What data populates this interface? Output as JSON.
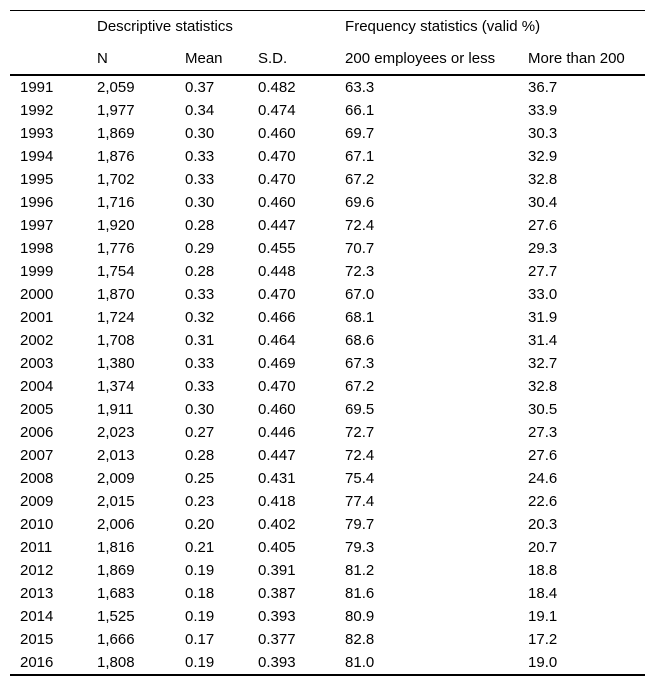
{
  "table": {
    "group_headers": [
      {
        "label": "Descriptive statistics",
        "span": 3
      },
      {
        "label": "Frequency statistics (valid %)",
        "span": 2
      }
    ],
    "column_headers": [
      "N",
      "Mean",
      "S.D.",
      "200 employees or less",
      "More than 200"
    ],
    "rows": [
      [
        "1991",
        "2,059",
        "0.37",
        "0.482",
        "63.3",
        "36.7"
      ],
      [
        "1992",
        "1,977",
        "0.34",
        "0.474",
        "66.1",
        "33.9"
      ],
      [
        "1993",
        "1,869",
        "0.30",
        "0.460",
        "69.7",
        "30.3"
      ],
      [
        "1994",
        "1,876",
        "0.33",
        "0.470",
        "67.1",
        "32.9"
      ],
      [
        "1995",
        "1,702",
        "0.33",
        "0.470",
        "67.2",
        "32.8"
      ],
      [
        "1996",
        "1,716",
        "0.30",
        "0.460",
        "69.6",
        "30.4"
      ],
      [
        "1997",
        "1,920",
        "0.28",
        "0.447",
        "72.4",
        "27.6"
      ],
      [
        "1998",
        "1,776",
        "0.29",
        "0.455",
        "70.7",
        "29.3"
      ],
      [
        "1999",
        "1,754",
        "0.28",
        "0.448",
        "72.3",
        "27.7"
      ],
      [
        "2000",
        "1,870",
        "0.33",
        "0.470",
        "67.0",
        "33.0"
      ],
      [
        "2001",
        "1,724",
        "0.32",
        "0.466",
        "68.1",
        "31.9"
      ],
      [
        "2002",
        "1,708",
        "0.31",
        "0.464",
        "68.6",
        "31.4"
      ],
      [
        "2003",
        "1,380",
        "0.33",
        "0.469",
        "67.3",
        "32.7"
      ],
      [
        "2004",
        "1,374",
        "0.33",
        "0.470",
        "67.2",
        "32.8"
      ],
      [
        "2005",
        "1,911",
        "0.30",
        "0.460",
        "69.5",
        "30.5"
      ],
      [
        "2006",
        "2,023",
        "0.27",
        "0.446",
        "72.7",
        "27.3"
      ],
      [
        "2007",
        "2,013",
        "0.28",
        "0.447",
        "72.4",
        "27.6"
      ],
      [
        "2008",
        "2,009",
        "0.25",
        "0.431",
        "75.4",
        "24.6"
      ],
      [
        "2009",
        "2,015",
        "0.23",
        "0.418",
        "77.4",
        "22.6"
      ],
      [
        "2010",
        "2,006",
        "0.20",
        "0.402",
        "79.7",
        "20.3"
      ],
      [
        "2011",
        "1,816",
        "0.21",
        "0.405",
        "79.3",
        "20.7"
      ],
      [
        "2012",
        "1,869",
        "0.19",
        "0.391",
        "81.2",
        "18.8"
      ],
      [
        "2013",
        "1,683",
        "0.18",
        "0.387",
        "81.6",
        "18.4"
      ],
      [
        "2014",
        "1,525",
        "0.19",
        "0.393",
        "80.9",
        "19.1"
      ],
      [
        "2015",
        "1,666",
        "0.17",
        "0.377",
        "82.8",
        "17.2"
      ],
      [
        "2016",
        "1,808",
        "0.19",
        "0.393",
        "81.0",
        "19.0"
      ]
    ],
    "colors": {
      "text": "#000000",
      "background": "#ffffff",
      "rule": "#000000"
    }
  }
}
